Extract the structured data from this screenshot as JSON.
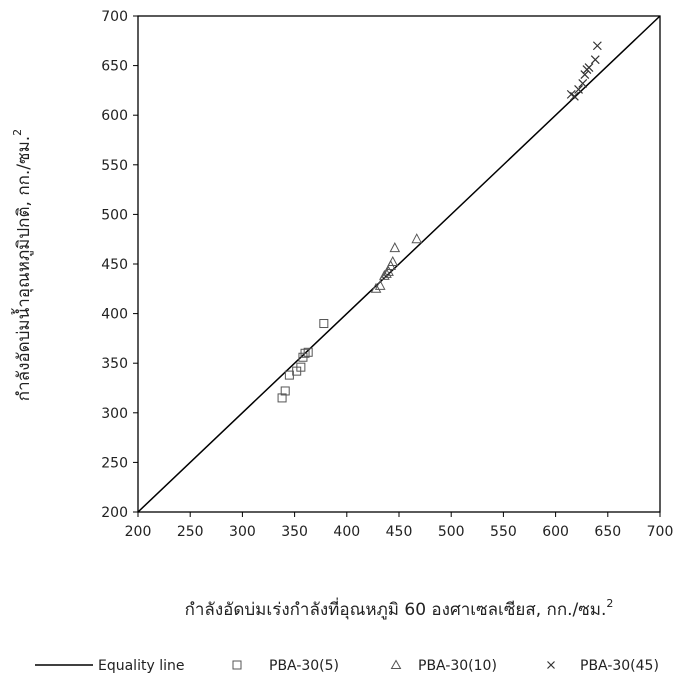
{
  "chart_data": {
    "type": "scatter",
    "xlabel": "กำลังอัดบ่มเร่งกำลังที่อุณหภูมิ 60 องศาเซลเซียส, กก./ซม.",
    "ylabel": "กำลังอัดบ่มน้ำอุณหภูมิปกติ, กก./ซม.",
    "unit_superscript": "2",
    "xlim": [
      200,
      700
    ],
    "ylim": [
      200,
      700
    ],
    "xticks": [
      "200",
      "250",
      "300",
      "350",
      "400",
      "450",
      "500",
      "550",
      "600",
      "650",
      "700"
    ],
    "yticks": [
      "200",
      "250",
      "300",
      "350",
      "400",
      "450",
      "500",
      "550",
      "600",
      "650",
      "700"
    ],
    "grid": false,
    "legend_position": "bottom",
    "equality_line": {
      "name": "Equality line",
      "from": [
        200,
        200
      ],
      "to": [
        700,
        700
      ]
    },
    "series": [
      {
        "name": "PBA-30(5)",
        "marker": "square",
        "points": [
          [
            338,
            315
          ],
          [
            341,
            322
          ],
          [
            345,
            338
          ],
          [
            352,
            342
          ],
          [
            356,
            346
          ],
          [
            358,
            356
          ],
          [
            360,
            360
          ],
          [
            363,
            361
          ],
          [
            378,
            390
          ]
        ]
      },
      {
        "name": "PBA-30(10)",
        "marker": "triangle",
        "points": [
          [
            428,
            425
          ],
          [
            432,
            428
          ],
          [
            436,
            438
          ],
          [
            438,
            440
          ],
          [
            440,
            442
          ],
          [
            442,
            448
          ],
          [
            444,
            452
          ],
          [
            446,
            466
          ],
          [
            467,
            475
          ]
        ]
      },
      {
        "name": "PBA-30(45)",
        "marker": "x",
        "points": [
          [
            615,
            621
          ],
          [
            618,
            619
          ],
          [
            622,
            626
          ],
          [
            626,
            632
          ],
          [
            628,
            641
          ],
          [
            630,
            646
          ],
          [
            632,
            648
          ],
          [
            638,
            656
          ],
          [
            640,
            670
          ]
        ]
      }
    ]
  }
}
